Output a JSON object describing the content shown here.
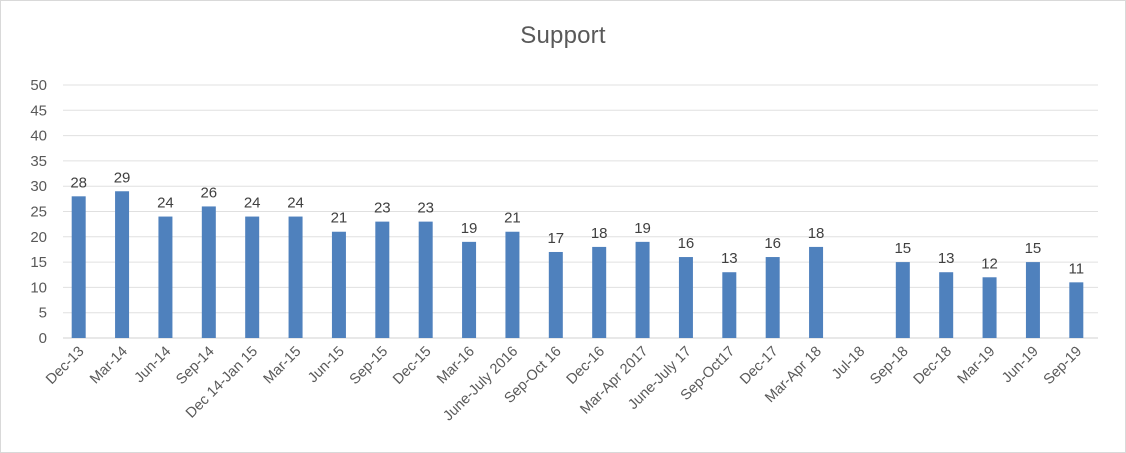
{
  "chart_data": {
    "type": "bar",
    "title": "Support",
    "xlabel": "",
    "ylabel": "",
    "ylim": [
      0,
      50
    ],
    "yticks": [
      0,
      5,
      10,
      15,
      20,
      25,
      30,
      35,
      40,
      45,
      50
    ],
    "grid": true,
    "legend": null,
    "data_labels": true,
    "bar_color": "#4f81bd",
    "categories": [
      "Dec-13",
      "Mar-14",
      "Jun-14",
      "Sep-14",
      "Dec 14-Jan 15",
      "Mar-15",
      "Jun-15",
      "Sep-15",
      "Dec-15",
      "Mar-16",
      "June-July 2016",
      "Sep-Oct 16",
      "Dec-16",
      "Mar-Apr 2017",
      "June-July 17",
      "Sep-Oct17",
      "Dec-17",
      "Mar-Apr 18",
      "Jul-18",
      "Sep-18",
      "Dec-18",
      "Mar-19",
      "Jun-19",
      "Sep-19"
    ],
    "values": [
      28,
      29,
      24,
      26,
      24,
      24,
      21,
      23,
      23,
      19,
      21,
      17,
      18,
      19,
      16,
      13,
      16,
      18,
      null,
      15,
      13,
      12,
      15,
      11
    ]
  }
}
